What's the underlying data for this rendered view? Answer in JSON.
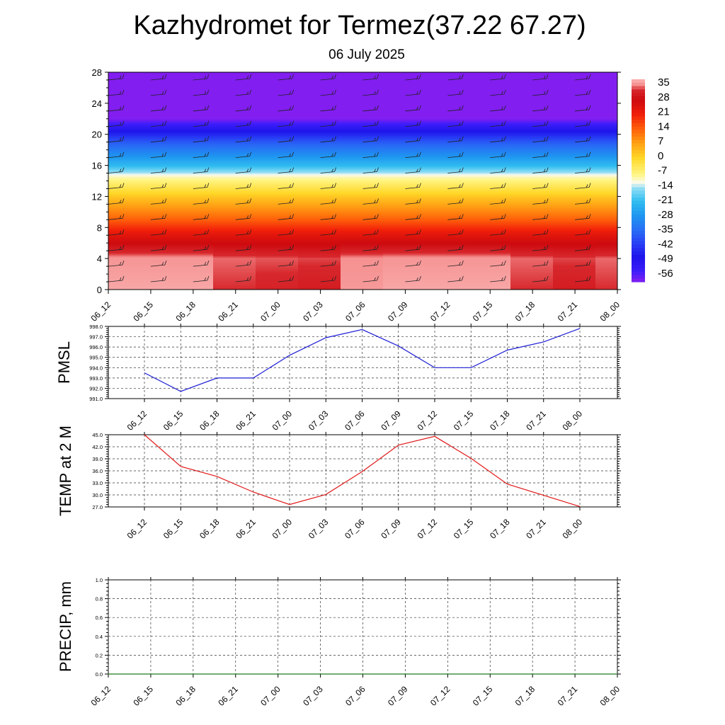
{
  "title": "Kazhydromet for Termez(37.22 67.27)",
  "subtitle": "06 July 2025",
  "time_labels": [
    "06_12",
    "06_15",
    "06_18",
    "06_21",
    "07_00",
    "07_03",
    "07_06",
    "07_09",
    "07_12",
    "07_15",
    "07_18",
    "07_21",
    "08_00"
  ],
  "chart_data": [
    {
      "type": "heatmap",
      "name": "vertical-section",
      "ylim": [
        0,
        28
      ],
      "y_ticks": [
        "0",
        "4",
        "8",
        "12",
        "16",
        "20",
        "24",
        "28"
      ],
      "x": [
        "06_12",
        "06_15",
        "06_18",
        "06_21",
        "07_00",
        "07_03",
        "07_06",
        "07_09",
        "07_12",
        "07_15",
        "07_18",
        "07_21",
        "08_00"
      ],
      "colorbar_labels": [
        "35",
        "28",
        "21",
        "14",
        "7",
        "0",
        "-7",
        "-14",
        "-21",
        "-28",
        "-35",
        "-42",
        "-49",
        "-56"
      ],
      "colorbar_range": [
        -60,
        38
      ],
      "levels": [
        0,
        4,
        7,
        9,
        12,
        14.5,
        16,
        19,
        22,
        28
      ],
      "level_values": [
        36,
        35,
        24,
        14,
        2,
        -10,
        -22,
        -38,
        -60,
        -60
      ],
      "near_surface_values": [
        37,
        37,
        37,
        33,
        32,
        31,
        36,
        37,
        37,
        37,
        33,
        31,
        33
      ],
      "wind_barbs": true
    },
    {
      "type": "line",
      "name": "pmsl",
      "ylabel": "PMSL",
      "x": [
        "06_12",
        "06_15",
        "06_18",
        "06_21",
        "07_00",
        "07_03",
        "07_06",
        "07_09",
        "07_12",
        "07_15",
        "07_18",
        "07_21",
        "08_00"
      ],
      "values": [
        993.5,
        991.7,
        993.0,
        993.0,
        995.2,
        996.9,
        997.7,
        996.1,
        994.0,
        994.0,
        995.7,
        996.5,
        997.8
      ],
      "ylim": [
        991.0,
        998.0
      ],
      "y_ticks": [
        "991.0",
        "992.0",
        "993.0",
        "994.0",
        "995.0",
        "996.0",
        "997.0",
        "998.0"
      ],
      "color": "#1f1fd6",
      "grid": true
    },
    {
      "type": "line",
      "name": "temp-2m",
      "ylabel": "TEMP at 2 M",
      "x": [
        "06_12",
        "06_15",
        "06_18",
        "06_21",
        "07_00",
        "07_03",
        "07_06",
        "07_09",
        "07_12",
        "07_15",
        "07_18",
        "07_21",
        "08_00"
      ],
      "values": [
        45.0,
        37.1,
        34.6,
        30.7,
        27.6,
        30.1,
        35.8,
        42.4,
        44.6,
        39.1,
        32.7,
        29.9,
        27.1
      ],
      "ylim": [
        27.0,
        45.0
      ],
      "y_ticks": [
        "27.0",
        "30.0",
        "33.0",
        "36.0",
        "39.0",
        "42.0",
        "45.0"
      ],
      "color": "#e01818",
      "grid": true
    },
    {
      "type": "line",
      "name": "precip",
      "ylabel": "PRECIP, mm",
      "x": [
        "06_12",
        "06_15",
        "06_18",
        "06_21",
        "07_00",
        "07_03",
        "07_06",
        "07_09",
        "07_12",
        "07_15",
        "07_18",
        "07_21",
        "08_00"
      ],
      "values": [
        0,
        0,
        0,
        0,
        0,
        0,
        0,
        0,
        0,
        0,
        0,
        0,
        0
      ],
      "ylim": [
        0.0,
        1.0
      ],
      "y_ticks": [
        "0.0",
        "0.2",
        "0.4",
        "0.6",
        "0.8",
        "1.0"
      ],
      "color": "#1e7a1e",
      "grid": true
    }
  ]
}
